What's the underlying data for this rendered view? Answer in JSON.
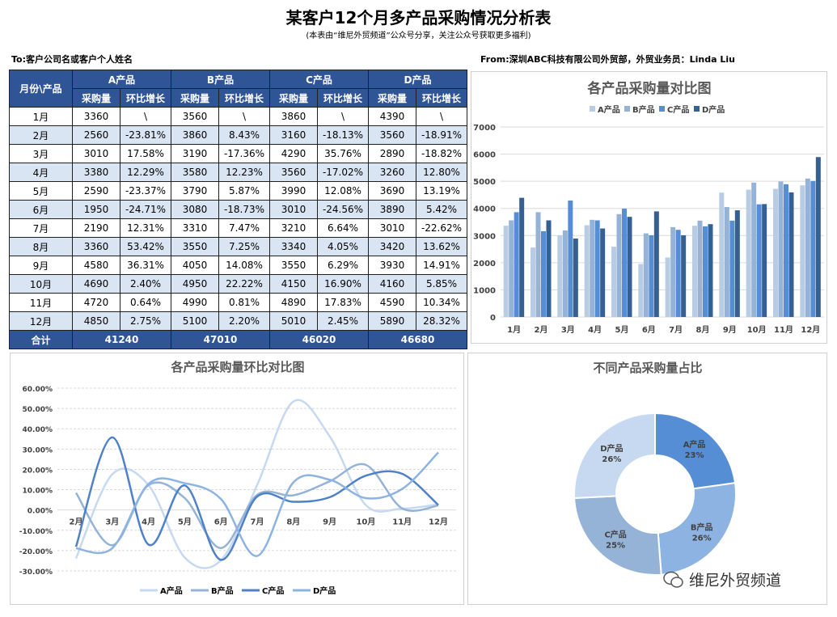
{
  "title": "某客户12个月多产品采购情况分析表",
  "subtitle": "(本表由“维尼外贸频道”公众号分享，关注公众号获取更多福利)",
  "to": "To:客户公司名或客户个人姓名",
  "from": "From:深圳ABC科技有限公司外贸部，外贸业务员：Linda  Liu",
  "table": {
    "corner": "月份\\产品",
    "products": [
      "A产品",
      "B产品",
      "C产品",
      "D产品"
    ],
    "sub": [
      "采购量",
      "环比增长"
    ],
    "rows": [
      [
        "1月",
        "3360",
        "\\",
        "3560",
        "\\",
        "3860",
        "\\",
        "4390",
        "\\"
      ],
      [
        "2月",
        "2560",
        "-23.81%",
        "3860",
        "8.43%",
        "3160",
        "-18.13%",
        "3560",
        "-18.91%"
      ],
      [
        "3月",
        "3010",
        "17.58%",
        "3190",
        "-17.36%",
        "4290",
        "35.76%",
        "2890",
        "-18.82%"
      ],
      [
        "4月",
        "3380",
        "12.29%",
        "3580",
        "12.23%",
        "3560",
        "-17.02%",
        "3260",
        "12.80%"
      ],
      [
        "5月",
        "2590",
        "-23.37%",
        "3790",
        "5.87%",
        "3990",
        "12.08%",
        "3690",
        "13.19%"
      ],
      [
        "6月",
        "1950",
        "-24.71%",
        "3080",
        "-18.73%",
        "3010",
        "-24.56%",
        "3890",
        "5.42%"
      ],
      [
        "7月",
        "2190",
        "12.31%",
        "3310",
        "7.47%",
        "3210",
        "6.64%",
        "3010",
        "-22.62%"
      ],
      [
        "8月",
        "3360",
        "53.42%",
        "3550",
        "7.25%",
        "3340",
        "4.05%",
        "3420",
        "13.62%"
      ],
      [
        "9月",
        "4580",
        "36.31%",
        "4050",
        "14.08%",
        "3550",
        "6.29%",
        "3930",
        "14.91%"
      ],
      [
        "10月",
        "4690",
        "2.40%",
        "4950",
        "22.22%",
        "4150",
        "16.90%",
        "4160",
        "5.85%"
      ],
      [
        "11月",
        "4720",
        "0.64%",
        "4990",
        "0.81%",
        "4890",
        "17.83%",
        "4590",
        "10.34%"
      ],
      [
        "12月",
        "4850",
        "2.75%",
        "5100",
        "2.20%",
        "5010",
        "2.45%",
        "5890",
        "28.32%"
      ]
    ],
    "total_label": "合计",
    "totals": [
      "41240",
      "47010",
      "46020",
      "46680"
    ]
  },
  "chart_data": [
    {
      "type": "bar",
      "title": "各产品采购量对比图",
      "categories": [
        "1月",
        "2月",
        "3月",
        "4月",
        "5月",
        "6月",
        "7月",
        "8月",
        "9月",
        "10月",
        "11月",
        "12月"
      ],
      "ylim": [
        0,
        7000
      ],
      "yticks": [
        "0",
        "1000",
        "2000",
        "3000",
        "4000",
        "5000",
        "6000",
        "7000"
      ],
      "grid": true,
      "legend": "top",
      "series": [
        {
          "name": "A产品",
          "color": "#b8cce4",
          "values": [
            3360,
            2560,
            3010,
            3380,
            2590,
            1950,
            2190,
            3360,
            4580,
            4690,
            4720,
            4850
          ]
        },
        {
          "name": "B产品",
          "color": "#95b3d7",
          "values": [
            3560,
            3860,
            3190,
            3580,
            3790,
            3080,
            3310,
            3550,
            4050,
            4950,
            4990,
            5100
          ]
        },
        {
          "name": "C产品",
          "color": "#558ed5",
          "values": [
            3860,
            3160,
            4290,
            3560,
            3990,
            3010,
            3210,
            3340,
            3550,
            4150,
            4890,
            5010
          ]
        },
        {
          "name": "D产品",
          "color": "#366092",
          "values": [
            4390,
            3560,
            2890,
            3260,
            3690,
            3890,
            3010,
            3420,
            3930,
            4160,
            4590,
            5890
          ]
        }
      ]
    },
    {
      "type": "line",
      "title": "各产品采购量环比对比图",
      "categories": [
        "2月",
        "3月",
        "4月",
        "5月",
        "6月",
        "7月",
        "8月",
        "9月",
        "10月",
        "11月",
        "12月"
      ],
      "ylim": [
        -30,
        60
      ],
      "yticks": [
        "-30.00%",
        "-20.00%",
        "-10.00%",
        "0.00%",
        "10.00%",
        "20.00%",
        "30.00%",
        "40.00%",
        "50.00%",
        "60.00%"
      ],
      "grid": true,
      "legend": "bottom",
      "smooth": true,
      "series": [
        {
          "name": "A产品",
          "color": "#c6d9f1",
          "values": [
            -23.81,
            17.58,
            12.29,
            -23.37,
            -24.71,
            12.31,
            53.42,
            36.31,
            2.4,
            0.64,
            2.75
          ]
        },
        {
          "name": "B产品",
          "color": "#95b3d7",
          "values": [
            8.43,
            -17.36,
            12.23,
            5.87,
            -18.73,
            7.47,
            7.25,
            14.08,
            22.22,
            0.81,
            2.2
          ]
        },
        {
          "name": "C产品",
          "color": "#4f81c9",
          "values": [
            -18.13,
            35.76,
            -17.02,
            12.08,
            -24.56,
            6.64,
            4.05,
            6.29,
            16.9,
            17.83,
            2.45
          ]
        },
        {
          "name": "D产品",
          "color": "#8db3e2",
          "values": [
            -18.91,
            -18.82,
            12.8,
            13.19,
            5.42,
            -22.62,
            13.62,
            14.91,
            5.85,
            10.34,
            28.32
          ]
        }
      ]
    },
    {
      "type": "pie",
      "donut": true,
      "title": "不同产品采购量占比",
      "slices": [
        {
          "name": "A产品",
          "value": 41240,
          "label": "23%",
          "color": "#558ed5"
        },
        {
          "name": "B产品",
          "value": 47010,
          "label": "26%",
          "color": "#8db3e2"
        },
        {
          "name": "C产品",
          "value": 46020,
          "label": "25%",
          "color": "#95b3d7"
        },
        {
          "name": "D产品",
          "value": 46680,
          "label": "26%",
          "color": "#c6d9f1"
        }
      ]
    }
  ],
  "watermark": "维尼外贸频道"
}
